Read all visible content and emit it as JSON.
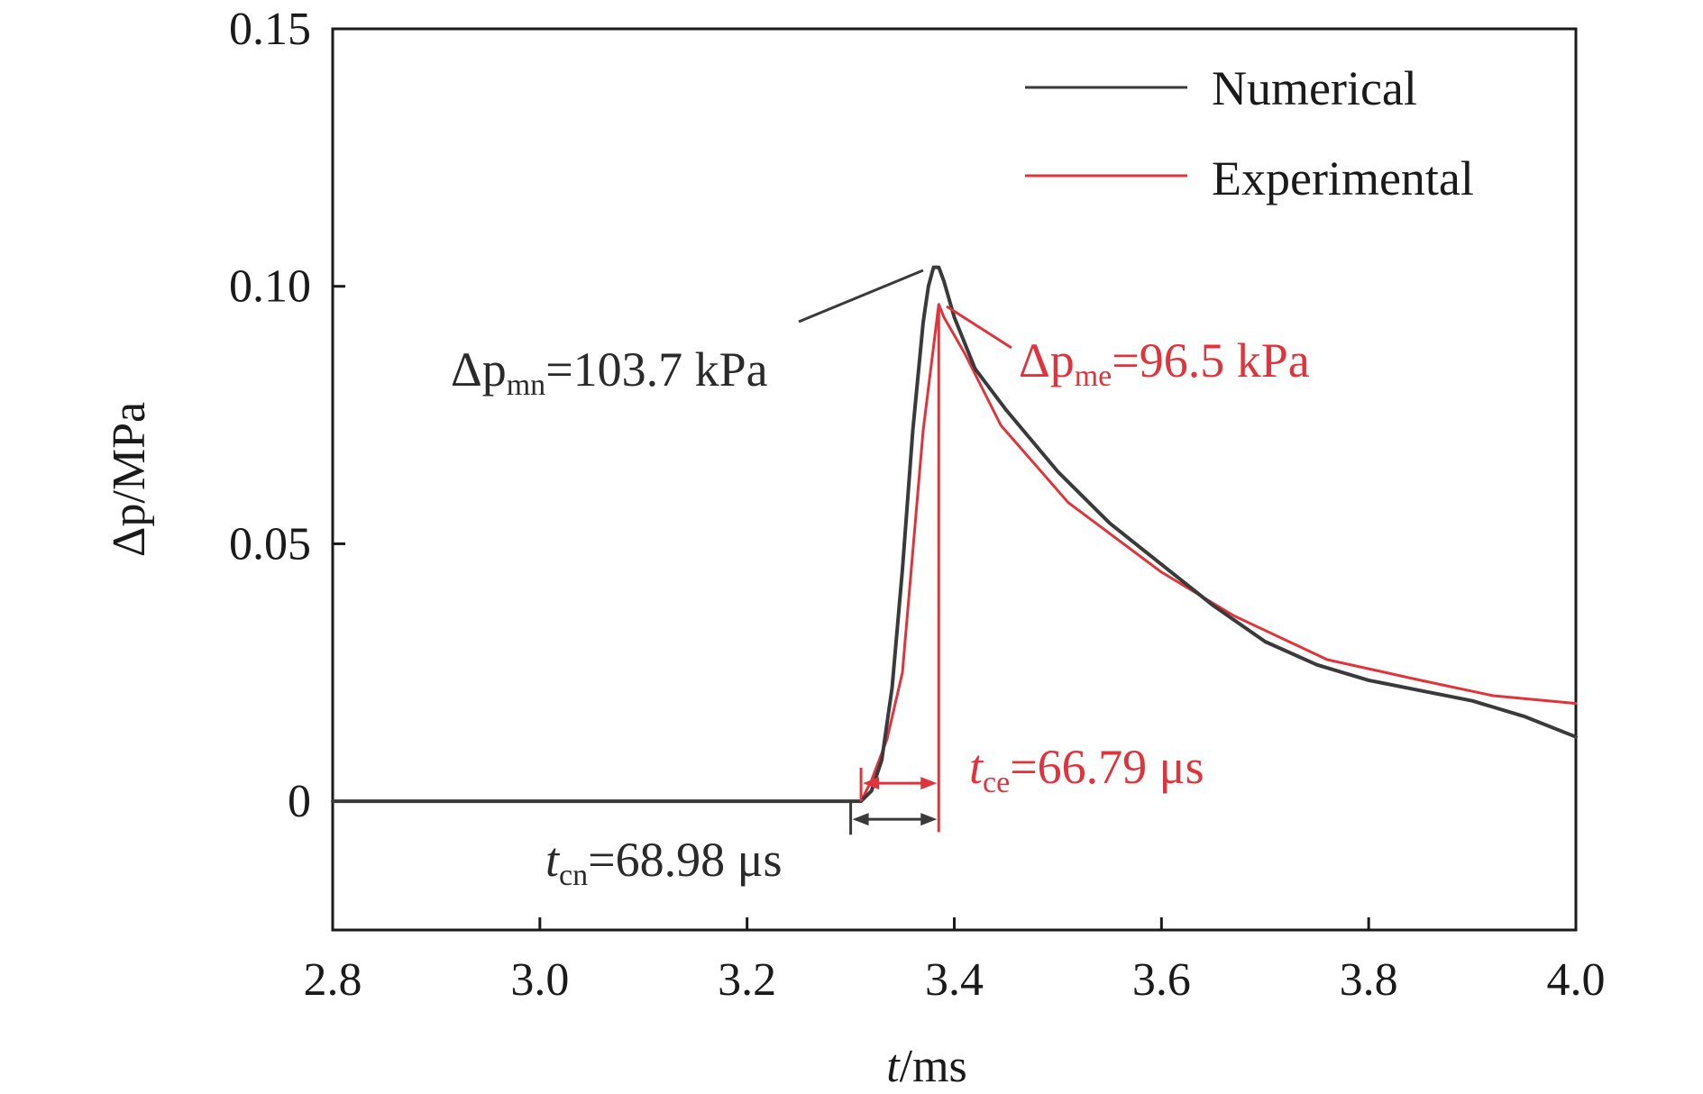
{
  "chart_data": {
    "type": "line",
    "xlabel": {
      "var": "t",
      "unit": "/ms"
    },
    "ylabel": {
      "var": "Δp",
      "unit": "/MPa"
    },
    "xlim": [
      2.8,
      4.0
    ],
    "ylim": [
      -0.025,
      0.15
    ],
    "x_ticks": [
      "2.8",
      "3.0",
      "3.2",
      "3.4",
      "3.6",
      "3.8",
      "4.0"
    ],
    "y_ticks": [
      "0",
      "0.05",
      "0.10",
      "0.15"
    ],
    "grid": false,
    "legend_position": "top-right",
    "colors": {
      "numerical": "#3a3a3a",
      "experimental": "#e0343c"
    },
    "series": [
      {
        "name": "Numerical",
        "x": [
          2.8,
          3.3,
          3.31,
          3.32,
          3.33,
          3.34,
          3.35,
          3.36,
          3.37,
          3.375,
          3.38,
          3.385,
          3.39,
          3.4,
          3.42,
          3.45,
          3.5,
          3.55,
          3.6,
          3.65,
          3.7,
          3.75,
          3.8,
          3.85,
          3.9,
          3.95,
          4.0
        ],
        "y": [
          0,
          0,
          0,
          0.002,
          0.008,
          0.022,
          0.045,
          0.072,
          0.093,
          0.1,
          0.1037,
          0.1037,
          0.101,
          0.094,
          0.084,
          0.076,
          0.064,
          0.054,
          0.046,
          0.038,
          0.031,
          0.0265,
          0.0235,
          0.0215,
          0.0195,
          0.0165,
          0.0125
        ]
      },
      {
        "name": "Experimental",
        "x": [
          2.8,
          3.31,
          3.32,
          3.335,
          3.35,
          3.37,
          3.385,
          3.39,
          3.41,
          3.445,
          3.51,
          3.6,
          3.67,
          3.76,
          3.85,
          3.92,
          4.0
        ],
        "y": [
          0,
          0,
          0.004,
          0.012,
          0.025,
          0.072,
          0.0965,
          0.094,
          0.087,
          0.073,
          0.058,
          0.0445,
          0.036,
          0.0275,
          0.0235,
          0.0205,
          0.019
        ]
      }
    ],
    "annotations": {
      "dpmn": {
        "main": "Δp",
        "sub": "mn",
        "rest": "=103.7 kPa"
      },
      "dpme": {
        "main": "Δp",
        "sub": "me",
        "rest": "=96.5 kPa"
      },
      "tce": {
        "main": "t",
        "sub": "ce",
        "rest": "=66.79 μs"
      },
      "tcn": {
        "main": "t",
        "sub": "cn",
        "rest": "=68.98 μs"
      }
    }
  }
}
